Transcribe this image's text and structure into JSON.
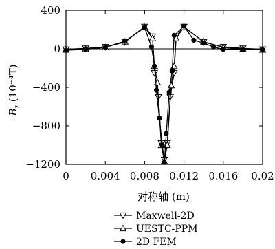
{
  "chart_data": {
    "type": "line",
    "title": "",
    "xlabel": "对称轴 (m)",
    "ylabel_main": "B",
    "ylabel_sub": "z",
    "ylabel_unit": "(10⁻⁴T)",
    "xlim": [
      0,
      0.02
    ],
    "ylim": [
      -1200,
      400
    ],
    "x_ticks": [
      0,
      0.004,
      0.008,
      0.012,
      0.016,
      0.02
    ],
    "x_tick_labels": [
      "0",
      "0.004",
      "0.008",
      "0.012",
      "0.016",
      "0.02"
    ],
    "y_ticks": [
      400,
      0,
      -400,
      -800,
      -1200
    ],
    "y_tick_labels": [
      "400",
      "0",
      "−400",
      "−800",
      "−1200"
    ],
    "grid": false,
    "legend_position": "bottom",
    "series": [
      {
        "name": "Maxwell-2D",
        "marker": "triangle-down",
        "points": [
          [
            0,
            -5
          ],
          [
            0.002,
            5
          ],
          [
            0.004,
            20
          ],
          [
            0.006,
            70
          ],
          [
            0.008,
            230
          ],
          [
            0.0088,
            130
          ],
          [
            0.009,
            -250
          ],
          [
            0.0094,
            -500
          ],
          [
            0.0097,
            -980
          ],
          [
            0.01,
            -1150
          ],
          [
            0.0103,
            -980
          ],
          [
            0.0106,
            -500
          ],
          [
            0.011,
            -250
          ],
          [
            0.0112,
            130
          ],
          [
            0.012,
            230
          ],
          [
            0.014,
            70
          ],
          [
            0.016,
            20
          ],
          [
            0.018,
            5
          ],
          [
            0.02,
            -5
          ]
        ]
      },
      {
        "name": "UESTC-PPM",
        "marker": "triangle-up",
        "points": [
          [
            0,
            -10
          ],
          [
            0.002,
            -2
          ],
          [
            0.004,
            15
          ],
          [
            0.006,
            75
          ],
          [
            0.008,
            225
          ],
          [
            0.0088,
            110
          ],
          [
            0.009,
            -180
          ],
          [
            0.0093,
            -350
          ],
          [
            0.0097,
            -1000
          ],
          [
            0.01,
            -1170
          ],
          [
            0.0103,
            -1000
          ],
          [
            0.0107,
            -380
          ],
          [
            0.011,
            -180
          ],
          [
            0.0112,
            110
          ],
          [
            0.012,
            225
          ],
          [
            0.014,
            75
          ],
          [
            0.016,
            15
          ],
          [
            0.018,
            -2
          ],
          [
            0.02,
            -10
          ]
        ]
      },
      {
        "name": "2D FEM",
        "marker": "circle",
        "points": [
          [
            0,
            -15
          ],
          [
            0.002,
            -5
          ],
          [
            0.004,
            15
          ],
          [
            0.006,
            80
          ],
          [
            0.008,
            220
          ],
          [
            0.0087,
            20
          ],
          [
            0.009,
            -180
          ],
          [
            0.0092,
            -430
          ],
          [
            0.0095,
            -720
          ],
          [
            0.0098,
            -1000
          ],
          [
            0.01,
            -1180
          ],
          [
            0.0102,
            -880
          ],
          [
            0.0105,
            -450
          ],
          [
            0.0108,
            -230
          ],
          [
            0.011,
            140
          ],
          [
            0.012,
            235
          ],
          [
            0.013,
            90
          ],
          [
            0.014,
            60
          ],
          [
            0.015,
            20
          ],
          [
            0.016,
            -5
          ],
          [
            0.018,
            -8
          ],
          [
            0.02,
            -10
          ]
        ]
      }
    ]
  }
}
